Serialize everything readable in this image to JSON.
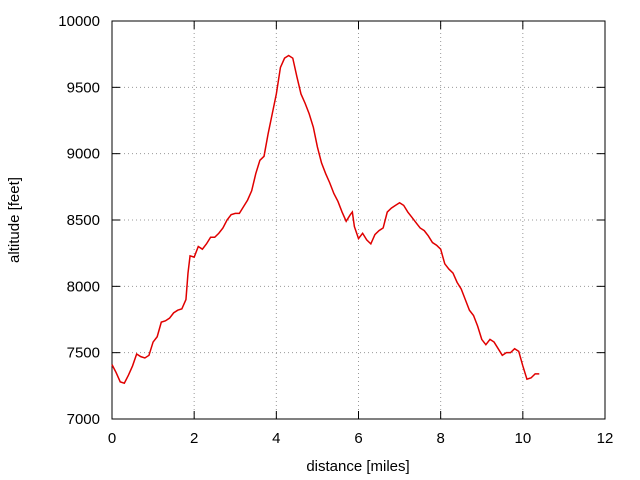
{
  "chart_data": {
    "type": "line",
    "xlabel": "distance [miles]",
    "ylabel": "altitude [feet]",
    "x": [
      0,
      0.1,
      0.2,
      0.3,
      0.4,
      0.5,
      0.6,
      0.7,
      0.8,
      0.9,
      1.0,
      1.1,
      1.2,
      1.3,
      1.4,
      1.5,
      1.6,
      1.7,
      1.8,
      1.85,
      1.9,
      2.0,
      2.1,
      2.2,
      2.3,
      2.4,
      2.5,
      2.6,
      2.7,
      2.8,
      2.9,
      3.0,
      3.1,
      3.2,
      3.3,
      3.4,
      3.5,
      3.6,
      3.7,
      3.8,
      3.9,
      4.0,
      4.1,
      4.2,
      4.3,
      4.4,
      4.5,
      4.6,
      4.7,
      4.8,
      4.9,
      5.0,
      5.1,
      5.2,
      5.3,
      5.4,
      5.5,
      5.6,
      5.7,
      5.8,
      5.85,
      5.9,
      6.0,
      6.1,
      6.2,
      6.3,
      6.4,
      6.5,
      6.6,
      6.7,
      6.8,
      6.9,
      7.0,
      7.1,
      7.2,
      7.3,
      7.4,
      7.5,
      7.6,
      7.7,
      7.8,
      7.9,
      8.0,
      8.1,
      8.2,
      8.3,
      8.4,
      8.5,
      8.6,
      8.7,
      8.8,
      8.9,
      9.0,
      9.1,
      9.2,
      9.3,
      9.4,
      9.5,
      9.6,
      9.7,
      9.8,
      9.9,
      10.0,
      10.1,
      10.2,
      10.3,
      10.4
    ],
    "values": [
      7410,
      7350,
      7280,
      7270,
      7330,
      7400,
      7490,
      7470,
      7460,
      7480,
      7580,
      7620,
      7730,
      7740,
      7760,
      7800,
      7820,
      7830,
      7900,
      8100,
      8230,
      8220,
      8300,
      8280,
      8320,
      8370,
      8370,
      8400,
      8440,
      8500,
      8540,
      8550,
      8550,
      8600,
      8650,
      8720,
      8850,
      8950,
      8980,
      9150,
      9300,
      9450,
      9650,
      9720,
      9740,
      9720,
      9580,
      9450,
      9380,
      9300,
      9200,
      9050,
      8930,
      8850,
      8780,
      8700,
      8640,
      8560,
      8490,
      8540,
      8560,
      8450,
      8360,
      8400,
      8350,
      8320,
      8390,
      8420,
      8440,
      8560,
      8590,
      8610,
      8630,
      8610,
      8560,
      8520,
      8480,
      8440,
      8420,
      8380,
      8330,
      8310,
      8280,
      8170,
      8130,
      8100,
      8030,
      7980,
      7900,
      7820,
      7780,
      7700,
      7600,
      7560,
      7600,
      7580,
      7530,
      7480,
      7500,
      7500,
      7530,
      7510,
      7400,
      7300,
      7310,
      7340,
      7340
    ],
    "color": "#e00000",
    "xlim": [
      0,
      12
    ],
    "xticks": [
      0,
      2,
      4,
      6,
      8,
      10,
      12
    ],
    "ylim": [
      7000,
      10000
    ],
    "yticks": [
      7000,
      7500,
      8000,
      8500,
      9000,
      9500,
      10000
    ],
    "grid": true
  }
}
